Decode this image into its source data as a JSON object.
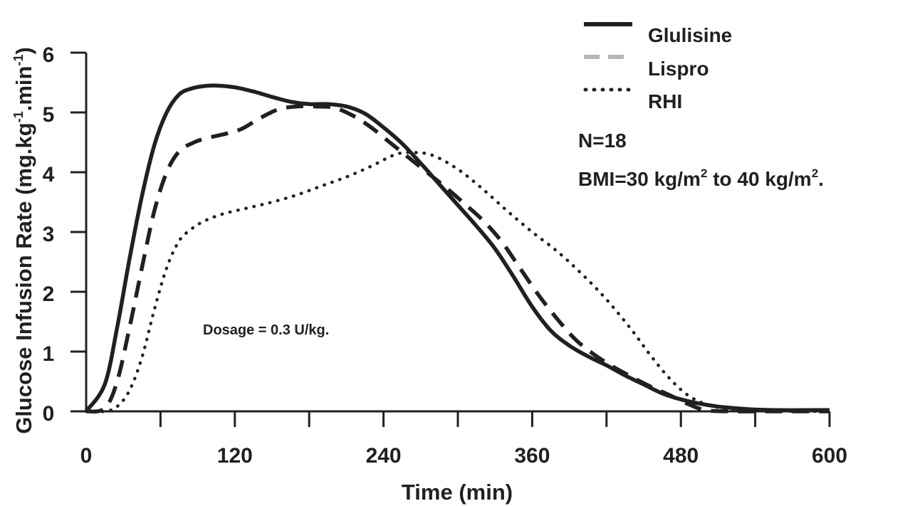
{
  "chart_data": {
    "type": "line",
    "title": "",
    "xlabel": "Time (min)",
    "ylabel": "Glucose Infusion Rate (mg.kg",
    "ylabel_sup1": "-1",
    "ylabel_mid": ".min",
    "ylabel_sup2": "-1",
    "ylabel_end": ")",
    "xlim": [
      0,
      600
    ],
    "ylim": [
      0,
      6
    ],
    "xticks": [
      0,
      120,
      240,
      360,
      480,
      600
    ],
    "yticks": [
      0,
      1,
      2,
      3,
      4,
      5,
      6
    ],
    "grid": false,
    "legend_position": "top-right",
    "series": [
      {
        "name": "Glulisine",
        "style": "solid",
        "color": "#231f20",
        "x": [
          0,
          15,
          25,
          35,
          45,
          55,
          65,
          75,
          85,
          95,
          105,
          120,
          135,
          150,
          165,
          180,
          195,
          210,
          225,
          240,
          255,
          270,
          285,
          300,
          315,
          330,
          345,
          360,
          375,
          390,
          405,
          420,
          435,
          450,
          465,
          480,
          495,
          510,
          525,
          540,
          560,
          580,
          600
        ],
        "y": [
          0,
          0.45,
          1.4,
          2.55,
          3.6,
          4.45,
          5.0,
          5.3,
          5.4,
          5.44,
          5.45,
          5.42,
          5.35,
          5.26,
          5.18,
          5.14,
          5.14,
          5.1,
          4.98,
          4.75,
          4.48,
          4.15,
          3.8,
          3.45,
          3.1,
          2.72,
          2.25,
          1.75,
          1.35,
          1.1,
          0.92,
          0.77,
          0.6,
          0.45,
          0.3,
          0.2,
          0.13,
          0.08,
          0.05,
          0.03,
          0.02,
          0.02,
          0.02
        ]
      },
      {
        "name": "Lispro",
        "style": "dashed",
        "color": "#231f20",
        "x": [
          0,
          15,
          25,
          35,
          45,
          55,
          65,
          75,
          85,
          95,
          110,
          125,
          140,
          155,
          170,
          185,
          200,
          215,
          230,
          245,
          260,
          275,
          290,
          305,
          320,
          335,
          350,
          365,
          380,
          395,
          410,
          425,
          440,
          455,
          470,
          485,
          500,
          520,
          540,
          560,
          580,
          600
        ],
        "y": [
          0,
          0.05,
          0.5,
          1.4,
          2.4,
          3.35,
          4.0,
          4.35,
          4.48,
          4.56,
          4.63,
          4.72,
          4.9,
          5.05,
          5.1,
          5.1,
          5.08,
          4.95,
          4.75,
          4.5,
          4.25,
          4.0,
          3.75,
          3.48,
          3.2,
          2.85,
          2.4,
          1.95,
          1.55,
          1.2,
          0.95,
          0.75,
          0.58,
          0.42,
          0.28,
          0.13,
          0.02,
          0.0,
          0.0,
          0.0,
          0.0,
          0.0
        ]
      },
      {
        "name": "RHI",
        "style": "dotted",
        "color": "#231f20",
        "x": [
          0,
          15,
          25,
          35,
          45,
          55,
          65,
          75,
          85,
          95,
          110,
          130,
          150,
          170,
          190,
          210,
          230,
          250,
          265,
          280,
          300,
          320,
          340,
          360,
          380,
          400,
          420,
          440,
          455,
          470,
          485,
          500,
          515,
          530,
          550,
          570,
          600
        ],
        "y": [
          0,
          0.0,
          0.08,
          0.35,
          0.9,
          1.7,
          2.4,
          2.85,
          3.05,
          3.18,
          3.3,
          3.4,
          3.5,
          3.62,
          3.77,
          3.92,
          4.1,
          4.3,
          4.33,
          4.28,
          4.05,
          3.72,
          3.35,
          3.0,
          2.68,
          2.3,
          1.87,
          1.37,
          0.95,
          0.57,
          0.28,
          0.12,
          0.05,
          0.02,
          0.01,
          0.0,
          0.0
        ]
      }
    ],
    "annotations": {
      "n": "N=18",
      "bmi_prefix": "BMI=30 kg/m",
      "bmi_sup1": "2",
      "bmi_mid": " to 40 kg/m",
      "bmi_sup2": "2",
      "bmi_end": ".",
      "dosage": "Dosage = 0.3 U/kg."
    }
  },
  "colors": {
    "ink": "#231f20",
    "legend_lispro": "#b4b6b8"
  }
}
